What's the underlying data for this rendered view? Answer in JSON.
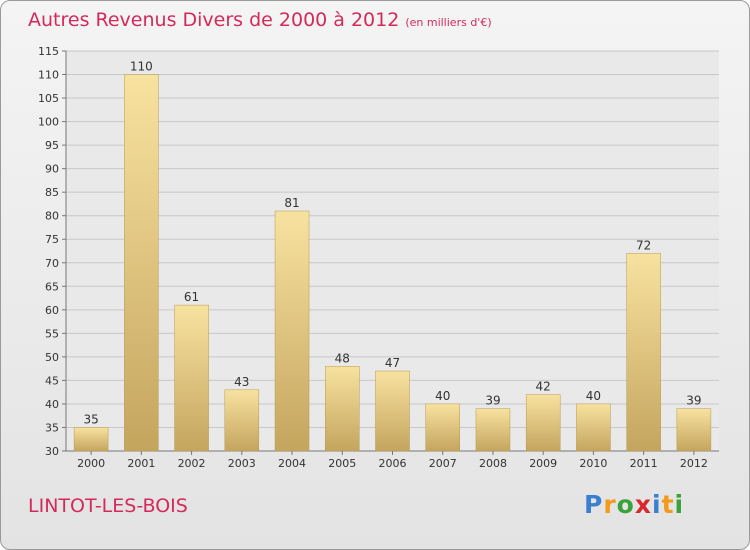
{
  "chart_data": {
    "type": "bar",
    "title": "Autres Revenus Divers de 2000 à 2012",
    "subtitle": "(en milliers d'€)",
    "categories": [
      "2000",
      "2001",
      "2002",
      "2003",
      "2004",
      "2005",
      "2006",
      "2007",
      "2008",
      "2009",
      "2010",
      "2011",
      "2012"
    ],
    "values": [
      35,
      110,
      61,
      43,
      81,
      48,
      47,
      40,
      39,
      42,
      40,
      72,
      39
    ],
    "ylim": [
      30,
      115
    ],
    "yticks": [
      30,
      35,
      40,
      45,
      50,
      55,
      60,
      65,
      70,
      75,
      80,
      85,
      90,
      95,
      100,
      105,
      110,
      115
    ],
    "grid": true,
    "legend": "none",
    "colors": {
      "bar_light": "#f8e2a0",
      "bar_dark": "#c4a55e",
      "title": "#d42a5b"
    }
  },
  "place_name": "LINTOT-LES-BOIS",
  "logo": {
    "letters": [
      "P",
      "r",
      "o",
      "x",
      "i",
      "t",
      "i"
    ],
    "colors": [
      "#3a7fd0",
      "#f39a1d",
      "#3aa23a",
      "#d8282e",
      "#3a7fd0",
      "#f39a1d",
      "#3aa23a"
    ]
  }
}
